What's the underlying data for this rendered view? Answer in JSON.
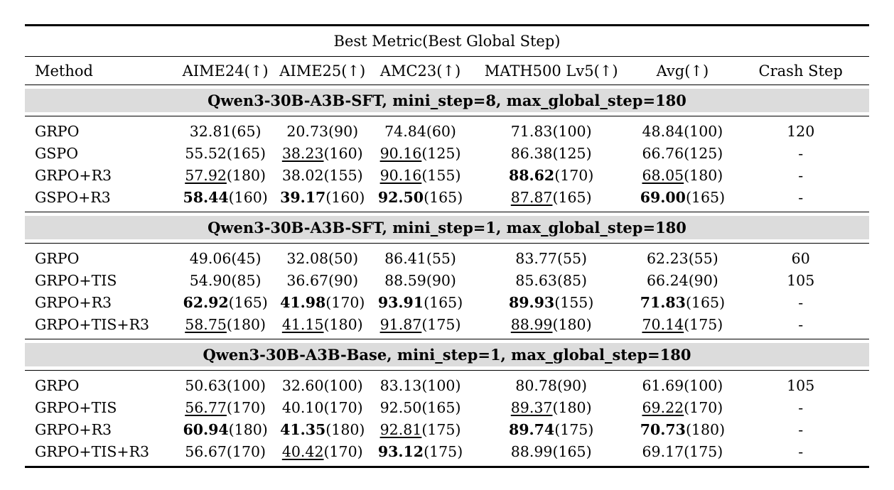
{
  "colors": {
    "band_background": "#dcdcdc",
    "rule": "#000000",
    "text": "#000000",
    "page_background": "#ffffff"
  },
  "table": {
    "span_header": "Best Metric(Best Global Step)",
    "columns": [
      "Method",
      "AIME24(↑)",
      "AIME25(↑)",
      "AMC23(↑)",
      "MATH500 Lv5(↑)",
      "Avg(↑)",
      "Crash Step"
    ],
    "style_legend": {
      "n": "normal",
      "b": "bold",
      "u": "underline"
    },
    "sections": [
      {
        "title": "Qwen3-30B-A3B-SFT, mini_step=8, max_global_step=180",
        "rows": [
          {
            "method": "GRPO",
            "metrics": [
              {
                "v": "32.81",
                "s": "(65)",
                "st": "n"
              },
              {
                "v": "20.73",
                "s": "(90)",
                "st": "n"
              },
              {
                "v": "74.84",
                "s": "(60)",
                "st": "n"
              },
              {
                "v": "71.83",
                "s": "(100)",
                "st": "n"
              },
              {
                "v": "48.84",
                "s": "(100)",
                "st": "n"
              }
            ],
            "crash": "120"
          },
          {
            "method": "GSPO",
            "metrics": [
              {
                "v": "55.52",
                "s": "(165)",
                "st": "n"
              },
              {
                "v": "38.23",
                "s": "(160)",
                "st": "u"
              },
              {
                "v": "90.16",
                "s": "(125)",
                "st": "u"
              },
              {
                "v": "86.38",
                "s": "(125)",
                "st": "n"
              },
              {
                "v": "66.76",
                "s": "(125)",
                "st": "n"
              }
            ],
            "crash": "-"
          },
          {
            "method": "GRPO+R3",
            "metrics": [
              {
                "v": "57.92",
                "s": "(180)",
                "st": "u"
              },
              {
                "v": "38.02",
                "s": "(155)",
                "st": "n"
              },
              {
                "v": "90.16",
                "s": "(155)",
                "st": "u"
              },
              {
                "v": "88.62",
                "s": "(170)",
                "st": "b"
              },
              {
                "v": "68.05",
                "s": "(180)",
                "st": "u"
              }
            ],
            "crash": "-"
          },
          {
            "method": "GSPO+R3",
            "metrics": [
              {
                "v": "58.44",
                "s": "(160)",
                "st": "b"
              },
              {
                "v": "39.17",
                "s": "(160)",
                "st": "b"
              },
              {
                "v": "92.50",
                "s": "(165)",
                "st": "b"
              },
              {
                "v": "87.87",
                "s": "(165)",
                "st": "u"
              },
              {
                "v": "69.00",
                "s": "(165)",
                "st": "b"
              }
            ],
            "crash": "-"
          }
        ]
      },
      {
        "title": "Qwen3-30B-A3B-SFT, mini_step=1, max_global_step=180",
        "rows": [
          {
            "method": "GRPO",
            "metrics": [
              {
                "v": "49.06",
                "s": "(45)",
                "st": "n"
              },
              {
                "v": "32.08",
                "s": "(50)",
                "st": "n"
              },
              {
                "v": "86.41",
                "s": "(55)",
                "st": "n"
              },
              {
                "v": "83.77",
                "s": "(55)",
                "st": "n"
              },
              {
                "v": "62.23",
                "s": "(55)",
                "st": "n"
              }
            ],
            "crash": "60"
          },
          {
            "method": "GRPO+TIS",
            "metrics": [
              {
                "v": "54.90",
                "s": "(85)",
                "st": "n"
              },
              {
                "v": "36.67",
                "s": "(90)",
                "st": "n"
              },
              {
                "v": "88.59",
                "s": "(90)",
                "st": "n"
              },
              {
                "v": "85.63",
                "s": "(85)",
                "st": "n"
              },
              {
                "v": "66.24",
                "s": "(90)",
                "st": "n"
              }
            ],
            "crash": "105"
          },
          {
            "method": "GRPO+R3",
            "metrics": [
              {
                "v": "62.92",
                "s": "(165)",
                "st": "b"
              },
              {
                "v": "41.98",
                "s": "(170)",
                "st": "b"
              },
              {
                "v": "93.91",
                "s": "(165)",
                "st": "b"
              },
              {
                "v": "89.93",
                "s": "(155)",
                "st": "b"
              },
              {
                "v": "71.83",
                "s": "(165)",
                "st": "b"
              }
            ],
            "crash": "-"
          },
          {
            "method": "GRPO+TIS+R3",
            "metrics": [
              {
                "v": "58.75",
                "s": "(180)",
                "st": "u"
              },
              {
                "v": "41.15",
                "s": "(180)",
                "st": "u"
              },
              {
                "v": "91.87",
                "s": "(175)",
                "st": "u"
              },
              {
                "v": "88.99",
                "s": "(180)",
                "st": "u"
              },
              {
                "v": "70.14",
                "s": "(175)",
                "st": "u"
              }
            ],
            "crash": "-"
          }
        ]
      },
      {
        "title": "Qwen3-30B-A3B-Base, mini_step=1, max_global_step=180",
        "rows": [
          {
            "method": "GRPO",
            "metrics": [
              {
                "v": "50.63",
                "s": "(100)",
                "st": "n"
              },
              {
                "v": "32.60",
                "s": "(100)",
                "st": "n"
              },
              {
                "v": "83.13",
                "s": "(100)",
                "st": "n"
              },
              {
                "v": "80.78",
                "s": "(90)",
                "st": "n"
              },
              {
                "v": "61.69",
                "s": "(100)",
                "st": "n"
              }
            ],
            "crash": "105"
          },
          {
            "method": "GRPO+TIS",
            "metrics": [
              {
                "v": "56.77",
                "s": "(170)",
                "st": "u"
              },
              {
                "v": "40.10",
                "s": "(170)",
                "st": "n"
              },
              {
                "v": "92.50",
                "s": "(165)",
                "st": "n"
              },
              {
                "v": "89.37",
                "s": "(180)",
                "st": "u"
              },
              {
                "v": "69.22",
                "s": "(170)",
                "st": "u"
              }
            ],
            "crash": "-"
          },
          {
            "method": "GRPO+R3",
            "metrics": [
              {
                "v": "60.94",
                "s": "(180)",
                "st": "b"
              },
              {
                "v": "41.35",
                "s": "(180)",
                "st": "b"
              },
              {
                "v": "92.81",
                "s": "(175)",
                "st": "u"
              },
              {
                "v": "89.74",
                "s": "(175)",
                "st": "b"
              },
              {
                "v": "70.73",
                "s": "(180)",
                "st": "b"
              }
            ],
            "crash": "-"
          },
          {
            "method": "GRPO+TIS+R3",
            "metrics": [
              {
                "v": "56.67",
                "s": "(170)",
                "st": "n"
              },
              {
                "v": "40.42",
                "s": "(170)",
                "st": "u"
              },
              {
                "v": "93.12",
                "s": "(175)",
                "st": "b"
              },
              {
                "v": "88.99",
                "s": "(165)",
                "st": "n"
              },
              {
                "v": "69.17",
                "s": "(175)",
                "st": "n"
              }
            ],
            "crash": "-"
          }
        ]
      }
    ]
  }
}
